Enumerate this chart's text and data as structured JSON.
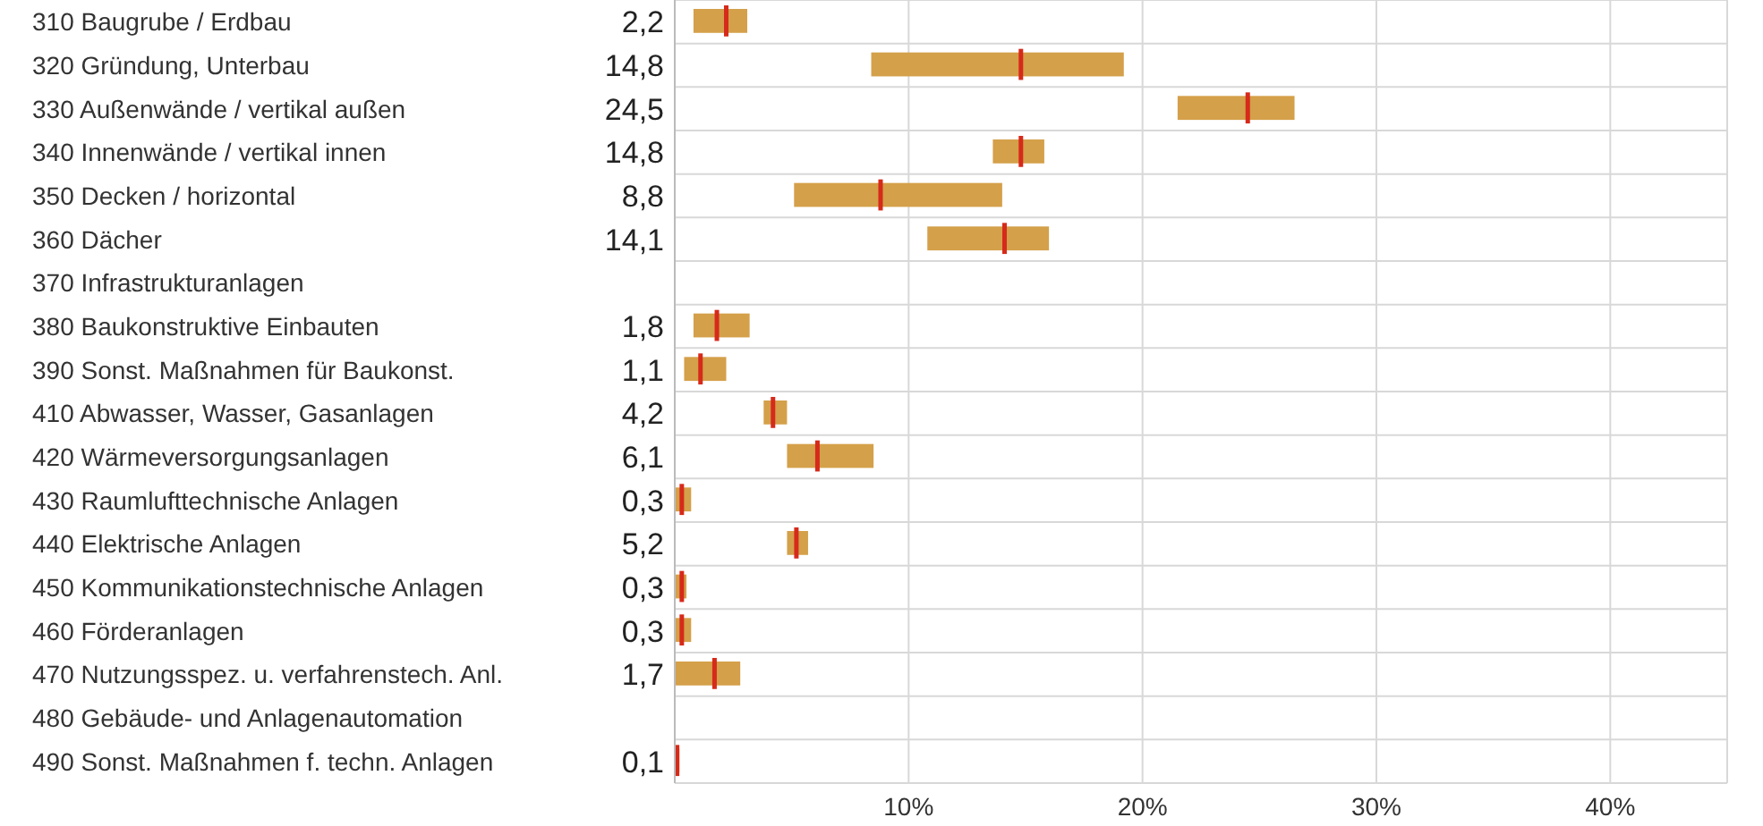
{
  "chart_data": {
    "type": "box",
    "orientation": "horizontal",
    "categories": [
      "310 Baugrube / Erdbau",
      "320 Gründung, Unterbau",
      "330 Außenwände / vertikal außen",
      "340 Innenwände / vertikal innen",
      "350 Decken / horizontal",
      "360 Dächer",
      "370 Infrastrukturanlagen",
      "380 Baukonstruktive Einbauten",
      "390 Sonst. Maßnahmen für Baukonst.",
      "410 Abwasser, Wasser, Gasanlagen",
      "420 Wärmeversorgungsanlagen",
      "430 Raumlufttechnische Anlagen",
      "440 Elektrische Anlagen",
      "450 Kommunikationstechnische Anlagen",
      "460 Förderanlagen",
      "470 Nutzungsspez. u. verfahrenstech. Anl.",
      "480 Gebäude- und Anlagenautomation",
      "490 Sonst. Maßnahmen f. techn. Anlagen"
    ],
    "color": "#d4a04a",
    "boxes": [
      {
        "low": 0.8,
        "q1": 0.8,
        "median": 2.2,
        "q3": 3.1,
        "high": 3.1
      },
      {
        "low": 8.4,
        "q1": 8.4,
        "median": 14.8,
        "q3": 19.2,
        "high": 19.2
      },
      {
        "low": 21.5,
        "q1": 21.5,
        "median": 24.5,
        "q3": 26.5,
        "high": 26.5
      },
      {
        "low": 13.6,
        "q1": 13.6,
        "median": 14.8,
        "q3": 15.8,
        "high": 15.8
      },
      {
        "low": 5.1,
        "q1": 5.1,
        "median": 8.8,
        "q3": 14.0,
        "high": 14.0
      },
      {
        "low": 10.8,
        "q1": 10.8,
        "median": 14.1,
        "q3": 16.0,
        "high": 16.0
      },
      null,
      {
        "low": 0.8,
        "q1": 0.8,
        "median": 1.8,
        "q3": 3.2,
        "high": 3.2
      },
      {
        "low": 0.4,
        "q1": 0.4,
        "median": 1.1,
        "q3": 2.2,
        "high": 2.2
      },
      {
        "low": 3.8,
        "q1": 3.8,
        "median": 4.2,
        "q3": 4.8,
        "high": 4.8
      },
      {
        "low": 4.8,
        "q1": 4.8,
        "median": 6.1,
        "q3": 8.5,
        "high": 8.5
      },
      {
        "low": 0,
        "q1": 0,
        "median": 0.3,
        "q3": 0.7,
        "high": 0.7
      },
      {
        "low": 4.8,
        "q1": 4.8,
        "median": 5.2,
        "q3": 5.7,
        "high": 5.7
      },
      {
        "low": 0,
        "q1": 0,
        "median": 0.3,
        "q3": 0.5,
        "high": 0.5
      },
      {
        "low": 0,
        "q1": 0,
        "median": 0.3,
        "q3": 0.7,
        "high": 0.7
      },
      {
        "low": 0,
        "q1": 0,
        "median": 1.7,
        "q3": 2.8,
        "high": 2.8
      },
      null,
      {
        "low": 0,
        "q1": 0,
        "median": 0.1,
        "q3": 0.2,
        "high": 0.2
      }
    ],
    "value_labels": [
      "2,2",
      "14,8",
      "24,5",
      "14,8",
      "8,8",
      "14,1",
      null,
      "1,8",
      "1,1",
      "4,2",
      "6,1",
      "0,3",
      "5,2",
      "0,3",
      "0,3",
      "1,7",
      null,
      "0,1"
    ],
    "xlim": [
      0,
      45
    ],
    "xticks": [
      {
        "value": 0,
        "label": null
      },
      {
        "value": 10,
        "label": "10%"
      },
      {
        "value": 20,
        "label": "20%"
      },
      {
        "value": 30,
        "label": "30%"
      },
      {
        "value": 40,
        "label": "40%"
      }
    ],
    "grid": true,
    "legend": false
  }
}
